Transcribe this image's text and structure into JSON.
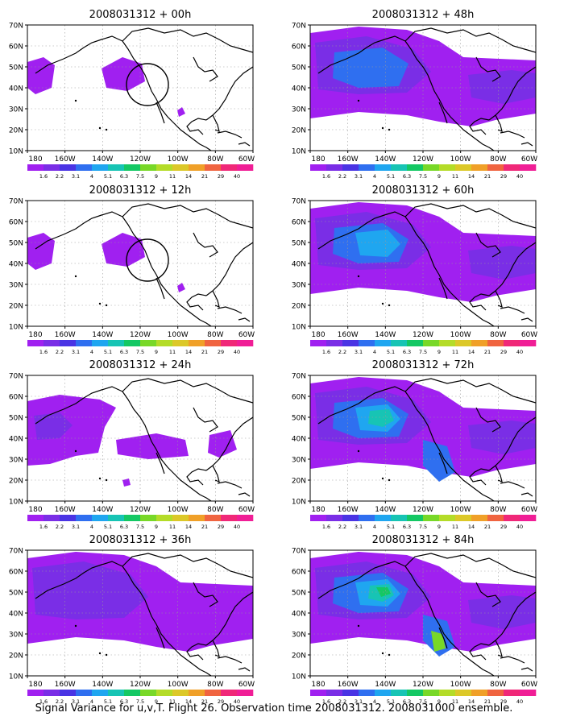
{
  "figure": {
    "caption": "Signal Variance for u,v,T. Flight 26. Observation time 2008031312. 2008031000 ensemble."
  },
  "lat_labels": [
    "70N",
    "60N",
    "50N",
    "40N",
    "30N",
    "20N",
    "10N"
  ],
  "lon_labels": [
    "180",
    "160W",
    "140W",
    "120W",
    "100W",
    "80W",
    "60W"
  ],
  "colorbar": {
    "labels": [
      "1.6",
      "2.2",
      "3.1",
      "4",
      "5.1",
      "6.3",
      "7.5",
      "9",
      "11",
      "14",
      "21",
      "29",
      "40"
    ],
    "colors": [
      "#a020f0",
      "#7a2ee6",
      "#4a34e4",
      "#2f6ff0",
      "#1fa6f0",
      "#17c4b4",
      "#14c864",
      "#78d828",
      "#b4dc28",
      "#dcc828",
      "#f0a028",
      "#f06440",
      "#f02878",
      "#f01e96"
    ]
  },
  "panels": [
    {
      "title": "2008031312 + 00h",
      "variance_level": 1,
      "circle": true
    },
    {
      "title": "2008031312 + 48h",
      "variance_level": 5,
      "circle": false
    },
    {
      "title": "2008031312 + 12h",
      "variance_level": 1,
      "circle": true
    },
    {
      "title": "2008031312 + 60h",
      "variance_level": 6,
      "circle": false
    },
    {
      "title": "2008031312 + 24h",
      "variance_level": 2,
      "circle": false
    },
    {
      "title": "2008031312 + 72h",
      "variance_level": 7,
      "circle": false
    },
    {
      "title": "2008031312 + 36h",
      "variance_level": 3,
      "circle": false
    },
    {
      "title": "2008031312 + 84h",
      "variance_level": 8,
      "circle": false
    }
  ]
}
